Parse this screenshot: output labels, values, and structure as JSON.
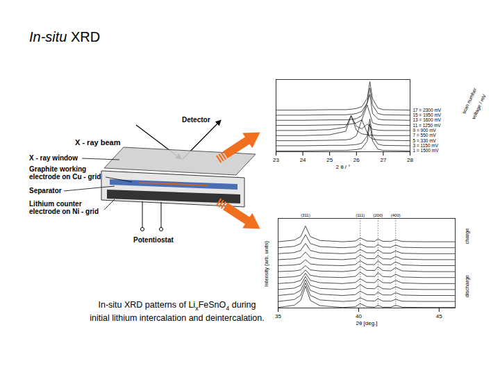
{
  "slide_title": {
    "italic": "In-situ",
    "rest": " XRD"
  },
  "diagram": {
    "x_ray_beam": "X - ray beam",
    "detector": "Detector",
    "x_ray_window": "X - ray window",
    "working_electrode": [
      "Graphite working",
      "electrode on Cu - grid"
    ],
    "separator": "Separator",
    "counter_electrode": [
      "Lithium counter",
      "electrode on Ni - grid"
    ],
    "potentiostat": "Potentiostat"
  },
  "caption": {
    "lines": [
      [
        "In-situ XRD patterns of Li",
        {
          "sub": "x"
        },
        "FeSnO",
        {
          "sub": "4"
        },
        "  during"
      ],
      [
        "initial lithium intercalation and deintercalation."
      ]
    ]
  },
  "chart_data": [
    {
      "type": "line",
      "x_label": "2 θ / °",
      "depth_labels": [
        "scan number",
        "voltage / mV"
      ],
      "x": [
        23,
        24,
        25,
        25.6,
        25.8,
        26.0,
        26.2,
        26.4,
        26.5,
        26.6,
        26.8,
        27,
        28
      ],
      "xlim": [
        23,
        28
      ],
      "xticks": [
        23,
        24,
        25,
        26,
        27,
        28
      ],
      "ylim": [
        0,
        17
      ],
      "tick_labels": "x",
      "color": "#000000",
      "series": [
        {
          "name": "1 = 1500 mV",
          "values": [
            0.2,
            0.2,
            0.3,
            0.3,
            0.4,
            0.5,
            0.8,
            2.5,
            6.5,
            2.5,
            0.6,
            0.3,
            0.2
          ]
        },
        {
          "name": "3 = 1150 mV",
          "values": [
            1.4,
            1.4,
            1.5,
            1.5,
            1.6,
            1.7,
            2,
            3.7,
            7.7,
            3.7,
            1.8,
            1.5,
            1.4
          ]
        },
        {
          "name": "5 = 330 mV",
          "values": [
            2.6,
            2.6,
            2.7,
            2.8,
            3,
            3.8,
            7.5,
            4.5,
            3.4,
            3,
            2.8,
            2.7,
            2.6
          ]
        },
        {
          "name": "7 = 550 mV",
          "values": [
            3.8,
            3.8,
            4,
            4.8,
            8.5,
            5,
            4.2,
            4,
            3.9,
            3.9,
            3.8,
            3.8,
            3.8
          ]
        },
        {
          "name": "9 = 900 mV",
          "values": [
            5,
            5,
            5.2,
            5.8,
            8.5,
            6,
            5.4,
            6.5,
            6,
            5.3,
            5.1,
            5,
            5
          ]
        },
        {
          "name": "11 = 1250 mV",
          "values": [
            6.2,
            6.2,
            6.3,
            6.4,
            6.5,
            6.8,
            7.5,
            11,
            9,
            6.8,
            6.4,
            6.3,
            6.2
          ]
        },
        {
          "name": "13 = 1600 mV",
          "values": [
            7.4,
            7.4,
            7.5,
            7.5,
            7.6,
            7.8,
            8.5,
            11.5,
            13.5,
            9,
            7.7,
            7.5,
            7.4
          ]
        },
        {
          "name": "15 = 1950 mV",
          "values": [
            8.6,
            8.6,
            8.7,
            8.7,
            8.8,
            9,
            9.5,
            11.5,
            15,
            11,
            9,
            8.7,
            8.6
          ]
        },
        {
          "name": "17 = 2300 mV",
          "values": [
            9.8,
            9.8,
            9.9,
            9.9,
            10,
            10.2,
            10.6,
            12.5,
            16.5,
            12.5,
            10.3,
            9.9,
            9.8
          ]
        }
      ]
    },
    {
      "type": "line",
      "x_label": "2θ [deg.]",
      "y_label": "Intensity (arb. units)",
      "side_labels": {
        "upper": "charge",
        "lower": "discharge"
      },
      "x": [
        35,
        36,
        36.4,
        36.7,
        37,
        37.6,
        39,
        39.8,
        40.1,
        40.5,
        41,
        41.2,
        41.5,
        42,
        42.3,
        42.7,
        44,
        46
      ],
      "xlim": [
        35,
        46
      ],
      "xticks": [
        35,
        40,
        45
      ],
      "ylim": [
        0,
        16.5
      ],
      "tick_labels": "x",
      "color": "#000000",
      "peak_labels": [
        {
          "x": 36.7,
          "label": "(311)"
        },
        {
          "x": 40.1,
          "label": "(111)"
        },
        {
          "x": 41.2,
          "label": "(200)"
        },
        {
          "x": 42.3,
          "label": "(400)"
        }
      ],
      "reference_lines": [
        40.1,
        41.2,
        42.3
      ],
      "series": [
        {
          "values": [
            0.1,
            0.5,
            1.4,
            4,
            1.4,
            0.42,
            0.1,
            0.24,
            0.8,
            0.24,
            0.15,
            0.5,
            0.15,
            0.15,
            0.5,
            0.15,
            0.1,
            0.1
          ]
        },
        {
          "values": [
            1.2,
            1.55,
            2.33,
            4.6,
            2.33,
            1.48,
            1.2,
            1.34,
            1.9,
            1.34,
            1.28,
            1.7,
            1.28,
            1.25,
            1.6,
            1.25,
            1.2,
            1.2
          ]
        },
        {
          "values": [
            2.3,
            2.6,
            3.25,
            5.2,
            3.25,
            2.54,
            2.3,
            2.47,
            3.1,
            2.47,
            2.41,
            2.9,
            2.41,
            2.38,
            2.8,
            2.38,
            2.3,
            2.3
          ]
        },
        {
          "values": [
            3.4,
            3.65,
            4.18,
            5.8,
            4.18,
            3.6,
            3.4,
            3.6,
            4.3,
            3.6,
            3.54,
            4.1,
            3.54,
            3.48,
            3.9,
            3.48,
            3.4,
            3.4
          ]
        },
        {
          "values": [
            4.5,
            4.7,
            5.1,
            6.4,
            5.1,
            4.66,
            4.5,
            4.7,
            5.4,
            4.7,
            4.67,
            5.3,
            4.67,
            4.61,
            5.1,
            4.61,
            4.5,
            4.5
          ]
        },
        {
          "values": [
            5.6,
            5.75,
            6.03,
            7,
            6.03,
            5.72,
            5.6,
            5.83,
            6.6,
            5.83,
            5.8,
            6.5,
            5.8,
            5.71,
            6.2,
            5.71,
            5.6,
            5.6
          ]
        },
        {
          "values": [
            6.7,
            6.82,
            7.02,
            7.8,
            7.02,
            6.8,
            6.7,
            6.93,
            7.7,
            6.93,
            6.9,
            7.6,
            6.9,
            6.84,
            7.4,
            6.84,
            6.7,
            6.7
          ]
        },
        {
          "values": [
            7.8,
            7.92,
            8.12,
            8.9,
            8.12,
            7.9,
            7.8,
            8,
            8.7,
            8,
            8,
            8.7,
            8,
            7.94,
            8.5,
            7.94,
            7.8,
            7.8
          ]
        },
        {
          "values": [
            8.9,
            9.05,
            9.33,
            10.3,
            9.33,
            9.02,
            8.9,
            9.1,
            9.8,
            9.1,
            9.07,
            9.7,
            9.07,
            9.01,
            9.5,
            9.01,
            8.9,
            8.9
          ]
        },
        {
          "values": [
            10,
            10.2,
            10.6,
            11.9,
            10.6,
            10.16,
            10,
            10.17,
            10.8,
            10.17,
            10.14,
            10.7,
            10.14,
            10.08,
            10.5,
            10.08,
            10,
            10
          ]
        },
        {
          "values": [
            11.1,
            11.35,
            11.88,
            13.5,
            11.88,
            11.3,
            11.1,
            11.24,
            11.8,
            11.24,
            11.21,
            11.7,
            11.21,
            11.18,
            11.6,
            11.18,
            11.1,
            11.1
          ]
        },
        {
          "values": [
            12.2,
            12.5,
            13.15,
            15.1,
            13.15,
            12.44,
            12.2,
            12.34,
            12.9,
            12.34,
            12.28,
            12.7,
            12.28,
            12.25,
            12.6,
            12.25,
            12.2,
            12.2
          ]
        }
      ]
    }
  ]
}
